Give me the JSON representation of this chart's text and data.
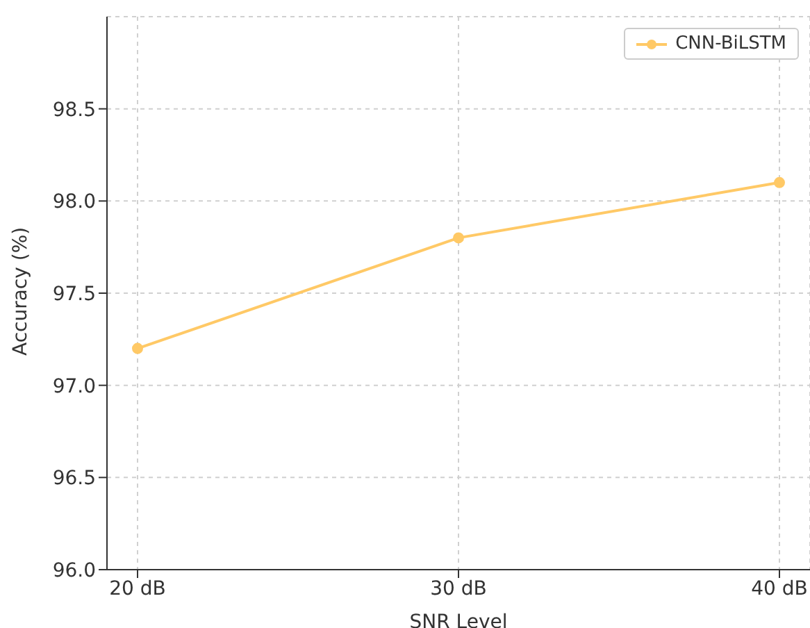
{
  "chart_data": {
    "type": "line",
    "xlabel": "SNR Level",
    "ylabel": "Accuracy (%)",
    "categories": [
      "20 dB",
      "30 dB",
      "40 dB"
    ],
    "series": [
      {
        "name": "CNN-BiLSTM",
        "color": "#ffc966",
        "values": [
          97.2,
          97.8,
          98.1
        ]
      }
    ],
    "ylim": [
      96,
      99
    ],
    "yticks": [
      {
        "value": 96,
        "label": "96.0"
      },
      {
        "value": 96.5,
        "label": "96.5"
      },
      {
        "value": 97,
        "label": "97.0"
      },
      {
        "value": 97.5,
        "label": "97.5"
      },
      {
        "value": 98,
        "label": "98.0"
      },
      {
        "value": 98.5,
        "label": "98.5"
      }
    ],
    "grid": true,
    "legend": "top right",
    "marker": "circle",
    "line_style": "solid"
  }
}
